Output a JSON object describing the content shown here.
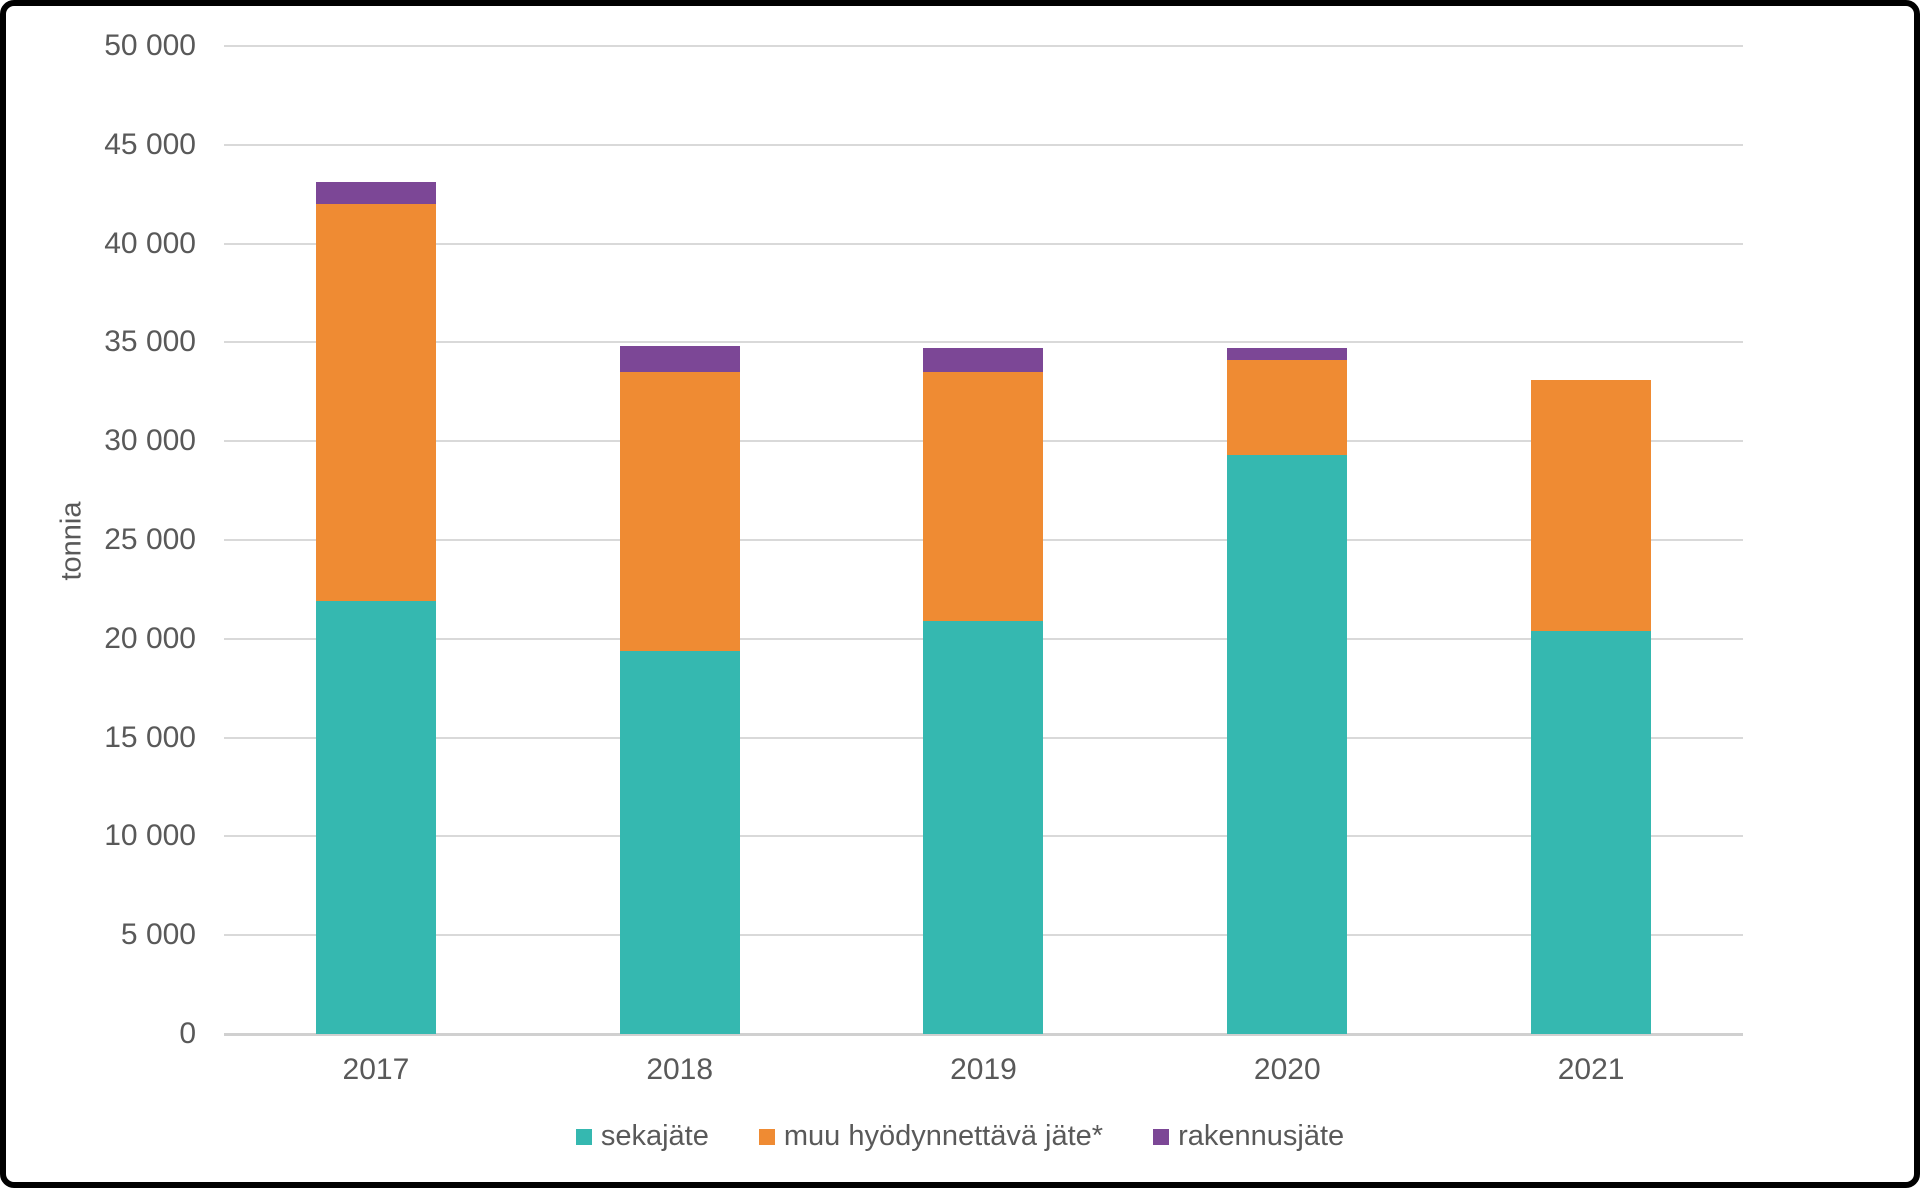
{
  "chart_data": {
    "type": "bar",
    "stacked": true,
    "title": "",
    "xlabel": "",
    "ylabel": "tonnia",
    "categories": [
      "2017",
      "2018",
      "2019",
      "2020",
      "2021"
    ],
    "series": [
      {
        "name": "sekajäte",
        "color": "#35B8B0",
        "values": [
          21900,
          19400,
          20900,
          29300,
          20400
        ]
      },
      {
        "name": "muu hyödynnettävä jäte*",
        "color": "#EF8B33",
        "values": [
          20100,
          14100,
          12600,
          4800,
          12700
        ]
      },
      {
        "name": "rakennusjäte",
        "color": "#7C4796",
        "values": [
          1100,
          1300,
          1200,
          600,
          0
        ]
      }
    ],
    "stack_totals": [
      43100,
      34800,
      34700,
      34700,
      33100
    ],
    "ylim": [
      0,
      50000
    ],
    "ytick_step": 5000,
    "ytick_labels": [
      "0",
      "5 000",
      "10 000",
      "15 000",
      "20 000",
      "25 000",
      "30 000",
      "35 000",
      "40 000",
      "45 000",
      "50 000"
    ],
    "grid": true,
    "legend_position": "bottom"
  },
  "colors": {
    "background": "#FFFFFF",
    "border": "#000000",
    "gridline": "#D9D9D9",
    "axis_line": "#D0D0D0",
    "text": "#595959"
  }
}
